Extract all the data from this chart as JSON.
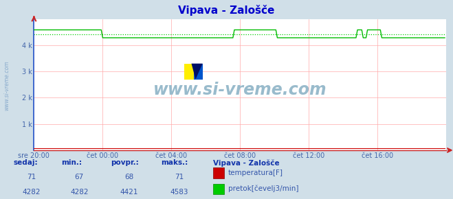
{
  "title": "Vipava - Zalošče",
  "title_color": "#0000cc",
  "bg_color": "#d0dfe8",
  "plot_bg_color": "#ffffff",
  "grid_color": "#ffaaaa",
  "left_spine_color": "#2255cc",
  "bottom_spine_color": "#cc2222",
  "arrow_color": "#cc2222",
  "ylim": [
    0,
    5000
  ],
  "xlim_n": 288,
  "yticks": [
    1000,
    2000,
    3000,
    4000
  ],
  "ytick_labels": [
    "1 k",
    "2 k",
    "3 k",
    "4 k"
  ],
  "xtick_labels": [
    "sre 20:00",
    "čet 00:00",
    "čet 04:00",
    "čet 08:00",
    "čet 12:00",
    "čet 16:00"
  ],
  "xtick_positions": [
    0,
    48,
    96,
    144,
    192,
    240
  ],
  "temp_color": "#cc0000",
  "flow_color": "#00bb00",
  "flow_avg_color": "#00cc00",
  "watermark_text": "www.si-vreme.com",
  "watermark_color": "#99bbcc",
  "sidebar_text": "www.si-vreme.com",
  "sidebar_color": "#88aacc",
  "footer_bg": "#ccdde8",
  "footer_text_color": "#3355aa",
  "footer_label_color": "#1133aa",
  "sedaj_label": "sedaj:",
  "min_label": "min.:",
  "povpr_label": "povpr.:",
  "maks_label": "maks.:",
  "station_label": "Vipava - Zalošče",
  "temp_sedaj": 71,
  "temp_min": 67,
  "temp_povpr": 68,
  "temp_maks": 71,
  "flow_sedaj": 4282,
  "flow_min": 4282,
  "flow_povpr": 4421,
  "flow_maks": 4583,
  "temp_legend": "temperatura[F]",
  "flow_legend": "pretok[čevelj3/min]",
  "tick_color": "#4466aa",
  "flow_profile": [
    4583,
    4583,
    4583,
    4583,
    4583,
    4583,
    4583,
    4583,
    4583,
    4583,
    4583,
    4583,
    4583,
    4583,
    4583,
    4583,
    4583,
    4583,
    4583,
    4583,
    4583,
    4583,
    4583,
    4583,
    4583,
    4583,
    4583,
    4583,
    4583,
    4583,
    4583,
    4583,
    4583,
    4583,
    4583,
    4583,
    4583,
    4583,
    4583,
    4583,
    4583,
    4583,
    4583,
    4583,
    4583,
    4583,
    4583,
    4583,
    4282,
    4282,
    4282,
    4282,
    4282,
    4282,
    4282,
    4282,
    4282,
    4282,
    4282,
    4282,
    4282,
    4282,
    4282,
    4282,
    4282,
    4282,
    4282,
    4282,
    4282,
    4282,
    4282,
    4282,
    4282,
    4282,
    4282,
    4282,
    4282,
    4282,
    4282,
    4282,
    4282,
    4282,
    4282,
    4282,
    4282,
    4282,
    4282,
    4282,
    4282,
    4282,
    4282,
    4282,
    4282,
    4282,
    4282,
    4282,
    4282,
    4282,
    4282,
    4282,
    4282,
    4282,
    4282,
    4282,
    4282,
    4282,
    4282,
    4282,
    4282,
    4282,
    4282,
    4282,
    4282,
    4282,
    4282,
    4282,
    4282,
    4282,
    4282,
    4282,
    4282,
    4282,
    4282,
    4282,
    4282,
    4282,
    4282,
    4282,
    4282,
    4282,
    4282,
    4282,
    4282,
    4282,
    4282,
    4282,
    4282,
    4282,
    4282,
    4282,
    4583,
    4583,
    4583,
    4583,
    4583,
    4583,
    4583,
    4583,
    4583,
    4583,
    4583,
    4583,
    4583,
    4583,
    4583,
    4583,
    4583,
    4583,
    4583,
    4583,
    4583,
    4583,
    4583,
    4583,
    4583,
    4583,
    4583,
    4583,
    4583,
    4583,
    4282,
    4282,
    4282,
    4282,
    4282,
    4282,
    4282,
    4282,
    4282,
    4282,
    4282,
    4282,
    4282,
    4282,
    4282,
    4282,
    4282,
    4282,
    4282,
    4282,
    4282,
    4282,
    4282,
    4282,
    4282,
    4282,
    4282,
    4282,
    4282,
    4282,
    4282,
    4282,
    4282,
    4282,
    4282,
    4282,
    4282,
    4282,
    4282,
    4282,
    4282,
    4282,
    4282,
    4282,
    4282,
    4282,
    4282,
    4282,
    4282,
    4282,
    4282,
    4282,
    4282,
    4282,
    4282,
    4282,
    4583,
    4583,
    4583,
    4583,
    4282,
    4282,
    4282,
    4583,
    4583,
    4583,
    4583,
    4583,
    4583,
    4583,
    4583,
    4583,
    4583,
    4282,
    4282,
    4282,
    4282,
    4282,
    4282,
    4282,
    4282,
    4282,
    4282,
    4282,
    4282,
    4282,
    4282,
    4282,
    4282,
    4282,
    4282
  ]
}
